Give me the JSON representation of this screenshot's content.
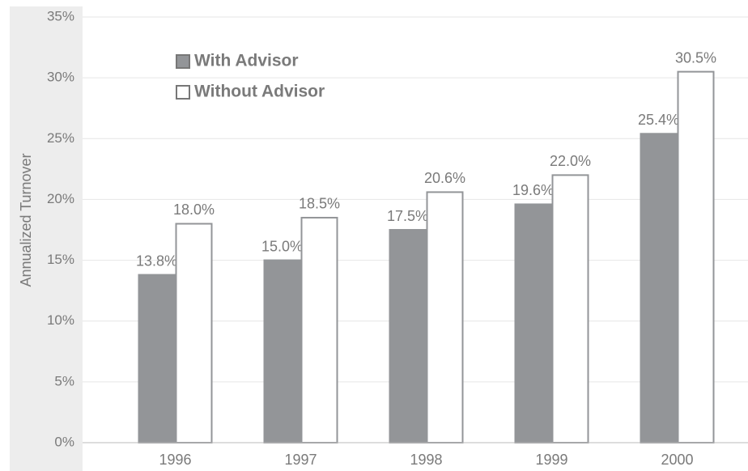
{
  "chart_data": {
    "type": "bar",
    "y_label": "Annualized Turnover",
    "categories": [
      "1996",
      "1997",
      "1998",
      "1999",
      "2000"
    ],
    "series": [
      {
        "name": "With Advisor",
        "color": "#939598",
        "values": [
          13.8,
          15.0,
          17.5,
          19.6,
          25.4
        ],
        "value_labels": [
          "13.8%",
          "15.0%",
          "17.5%",
          "19.6%",
          "25.4%"
        ]
      },
      {
        "name": "Without Advisor",
        "color": "#ffffff",
        "values": [
          18.0,
          18.5,
          20.6,
          22.0,
          30.5
        ],
        "value_labels": [
          "18.0%",
          "18.5%",
          "20.6%",
          "22.0%",
          "30.5%"
        ]
      }
    ],
    "ylim": [
      0,
      35
    ],
    "yticks": [
      {
        "value": 0,
        "label": "0%"
      },
      {
        "value": 5,
        "label": "5%"
      },
      {
        "value": 10,
        "label": "10%"
      },
      {
        "value": 15,
        "label": "15%"
      },
      {
        "value": 20,
        "label": "20%"
      },
      {
        "value": 25,
        "label": "25%"
      },
      {
        "value": 30,
        "label": "30%"
      },
      {
        "value": 35,
        "label": "35%"
      }
    ],
    "grid": true,
    "legend": "top-left"
  }
}
